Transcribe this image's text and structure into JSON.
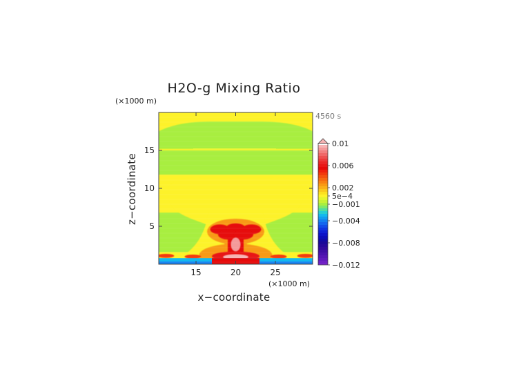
{
  "chart_data": {
    "type": "heatmap",
    "title": "H2O-g Mixing Ratio",
    "time_label": "4560 s",
    "xlabel": "x−coordinate",
    "ylabel": "z−coordinate",
    "x_scale_label": "(×1000 m)",
    "y_scale_label": "(×1000 m)",
    "xlim": [
      10.3,
      29.7
    ],
    "ylim": [
      0,
      20
    ],
    "x_ticks": [
      {
        "value": 15,
        "label": "15"
      },
      {
        "value": 20,
        "label": "20"
      },
      {
        "value": 25,
        "label": "25"
      }
    ],
    "y_ticks": [
      {
        "value": 5,
        "label": "5"
      },
      {
        "value": 10,
        "label": "10"
      },
      {
        "value": 15,
        "label": "15"
      }
    ],
    "colorbar": {
      "range": [
        -0.012,
        0.01
      ],
      "extend": "max",
      "tick_labels": [
        {
          "value": 0.01,
          "label": "0.01"
        },
        {
          "value": 0.006,
          "label": "0.006"
        },
        {
          "value": 0.002,
          "label": "0.002"
        },
        {
          "value": 0.0005,
          "label": "5e−4"
        },
        {
          "value": -0.001,
          "label": "−0.001"
        },
        {
          "value": -0.004,
          "label": "−0.004"
        },
        {
          "value": -0.008,
          "label": "−0.008"
        },
        {
          "value": -0.012,
          "label": "−0.012"
        }
      ],
      "levels": [
        {
          "value": 0.0095,
          "color": "#f7b3b3"
        },
        {
          "value": 0.009,
          "color": "#f49a9a"
        },
        {
          "value": 0.0085,
          "color": "#f28080"
        },
        {
          "value": 0.008,
          "color": "#f06868"
        },
        {
          "value": 0.0075,
          "color": "#ee5050"
        },
        {
          "value": 0.007,
          "color": "#ec3a3a"
        },
        {
          "value": 0.0065,
          "color": "#ea2626"
        },
        {
          "value": 0.006,
          "color": "#e81818"
        },
        {
          "value": 0.0055,
          "color": "#e60a0a"
        },
        {
          "value": 0.005,
          "color": "#f0200c"
        },
        {
          "value": 0.0045,
          "color": "#f23a0c"
        },
        {
          "value": 0.004,
          "color": "#f4520e"
        },
        {
          "value": 0.0035,
          "color": "#f66a10"
        },
        {
          "value": 0.003,
          "color": "#f78012"
        },
        {
          "value": 0.0025,
          "color": "#f89a14"
        },
        {
          "value": 0.002,
          "color": "#f9b018"
        },
        {
          "value": 0.0015,
          "color": "#fac81c"
        },
        {
          "value": 0.001,
          "color": "#fce020"
        },
        {
          "value": 0.0005,
          "color": "#fdf22a"
        },
        {
          "value": 0.0,
          "color": "#e4f52e"
        },
        {
          "value": -0.0005,
          "color": "#c8f234"
        },
        {
          "value": -0.001,
          "color": "#a8ee40"
        },
        {
          "value": -0.0015,
          "color": "#7ee86a"
        },
        {
          "value": -0.002,
          "color": "#50dca0"
        },
        {
          "value": -0.0025,
          "color": "#28cfd0"
        },
        {
          "value": -0.003,
          "color": "#14b8ee"
        },
        {
          "value": -0.0035,
          "color": "#149cf0"
        },
        {
          "value": -0.004,
          "color": "#1480f0"
        },
        {
          "value": -0.0045,
          "color": "#1466ee"
        },
        {
          "value": -0.005,
          "color": "#124ce8"
        },
        {
          "value": -0.0055,
          "color": "#1034e0"
        },
        {
          "value": -0.006,
          "color": "#0e20d6"
        },
        {
          "value": -0.0065,
          "color": "#0c12c8"
        },
        {
          "value": -0.007,
          "color": "#0c0cb8"
        },
        {
          "value": -0.0075,
          "color": "#100aa6"
        },
        {
          "value": -0.008,
          "color": "#1a0898"
        },
        {
          "value": -0.0085,
          "color": "#26089a"
        },
        {
          "value": -0.009,
          "color": "#320a9c"
        },
        {
          "value": -0.0095,
          "color": "#3e0ea4"
        },
        {
          "value": -0.01,
          "color": "#4a12ac"
        },
        {
          "value": -0.0105,
          "color": "#5616b4"
        },
        {
          "value": -0.011,
          "color": "#621abc"
        },
        {
          "value": -0.0115,
          "color": "#6e20c4"
        },
        {
          "value": -0.012,
          "color": "#7a26cc"
        }
      ]
    },
    "field_regions": [
      {
        "name": "background",
        "value": 0.0003,
        "shape": "rect",
        "x": [
          10.3,
          29.7
        ],
        "z": [
          0,
          20
        ]
      },
      {
        "name": "upper-band",
        "value": -0.0011,
        "shape": "band",
        "x": [
          10.3,
          29.7
        ],
        "z": [
          15.2,
          18.8
        ]
      },
      {
        "name": "middle-band",
        "value": -0.0011,
        "shape": "band",
        "x": [
          10.3,
          29.7
        ],
        "z": [
          11.8,
          15.0
        ]
      },
      {
        "name": "lower-band",
        "value": -0.0011,
        "shape": "band",
        "x": [
          10.3,
          29.7
        ],
        "z": [
          1.6,
          6.8
        ]
      },
      {
        "name": "upper-cloud",
        "value": 0.0004,
        "shape": "blob",
        "x": [
          11.5,
          28.5
        ],
        "z": [
          5.8,
          11.4
        ]
      },
      {
        "name": "plume-core",
        "value": 0.0045,
        "shape": "plume",
        "x": [
          17.0,
          23.0
        ],
        "z": [
          0.5,
          5.6
        ]
      },
      {
        "name": "surface-layer",
        "value": -0.0028,
        "shape": "band",
        "x": [
          10.3,
          29.7
        ],
        "z": [
          0,
          0.8
        ]
      }
    ]
  }
}
